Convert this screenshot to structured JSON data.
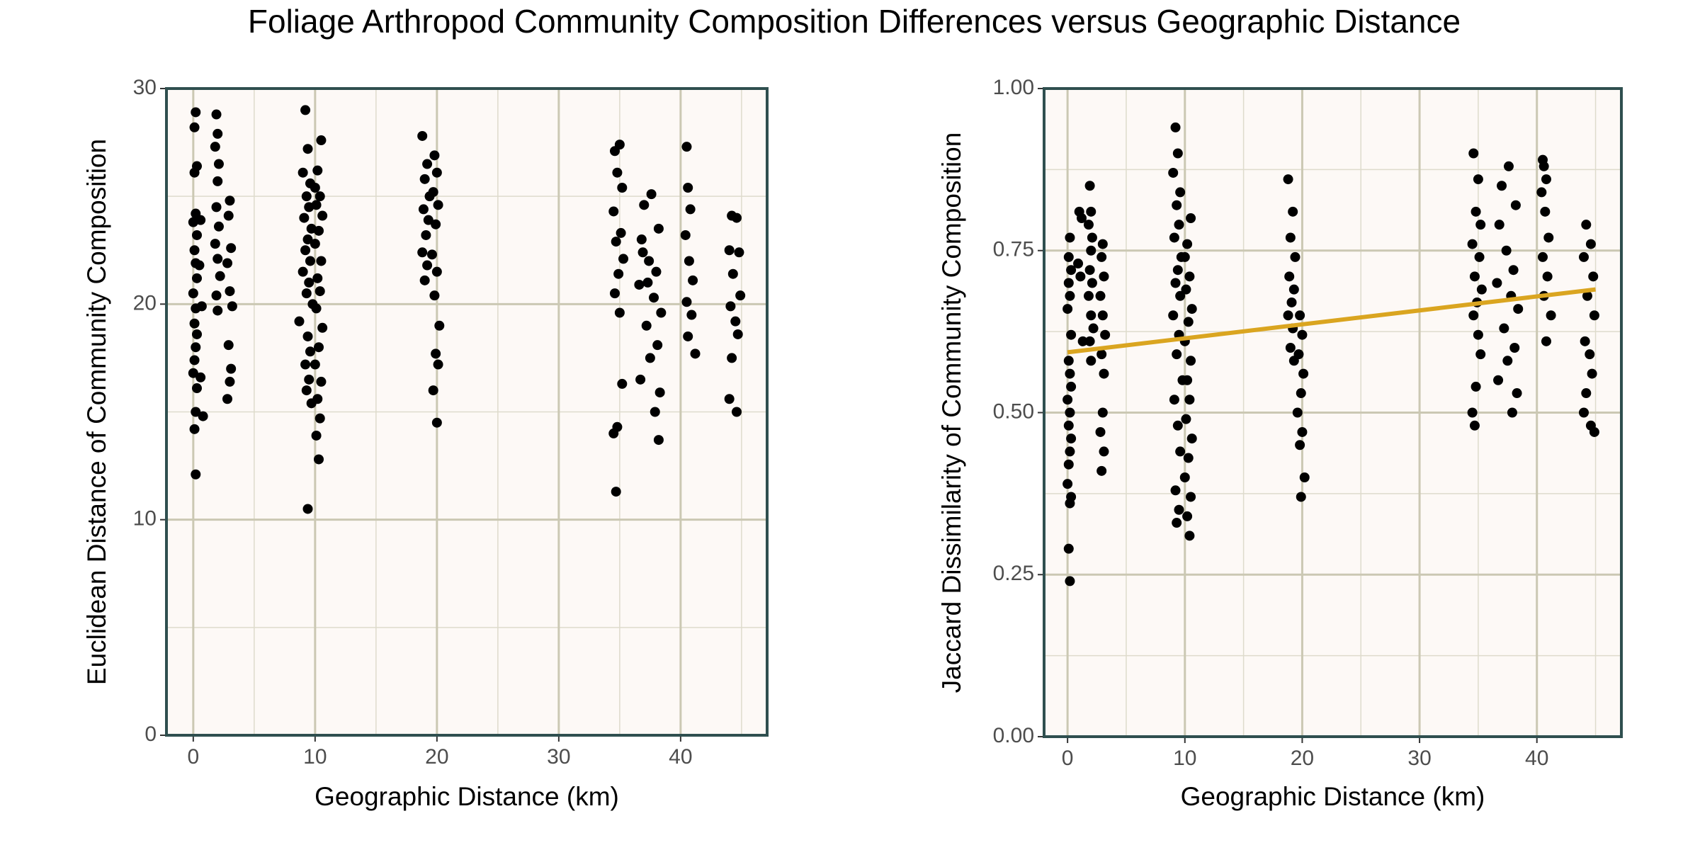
{
  "title": "Foliage Arthropod Community Composition Differences versus Geographic Distance",
  "chart_data": [
    {
      "type": "scatter",
      "xlabel": "Geographic Distance (km)",
      "ylabel": "Euclidean Distance of Community Composition",
      "xlim": [
        -2.2,
        47.1
      ],
      "ylim": [
        0,
        30
      ],
      "xticks": [
        0,
        10,
        20,
        30,
        40
      ],
      "yticks": [
        0,
        10,
        20,
        30
      ],
      "minor_grid_x": [
        5,
        15,
        25,
        35,
        45
      ],
      "minor_grid_y": [
        5,
        15,
        25
      ],
      "color": "#000000",
      "x": [
        0.2,
        0.1,
        0.3,
        0.1,
        0.2,
        0.0,
        0.3,
        0.1,
        0.2,
        0.3,
        0.0,
        0.2,
        0.1,
        0.3,
        0.2,
        0.1,
        0.0,
        0.3,
        0.2,
        0.1,
        0.2,
        0.6,
        0.5,
        0.7,
        0.6,
        0.8,
        1.9,
        2.0,
        1.8,
        2.1,
        2.0,
        1.9,
        2.1,
        1.8,
        2.0,
        2.2,
        1.9,
        2.0,
        3.0,
        2.9,
        3.1,
        2.8,
        3.0,
        3.2,
        2.9,
        3.1,
        3.0,
        2.8,
        9.2,
        9.4,
        9.0,
        9.6,
        9.3,
        9.5,
        9.1,
        9.7,
        9.4,
        9.2,
        9.6,
        9.0,
        9.5,
        9.3,
        9.8,
        8.7,
        9.4,
        9.6,
        9.2,
        9.5,
        9.3,
        9.7,
        9.4,
        10.5,
        10.2,
        10.0,
        10.4,
        10.1,
        10.6,
        10.3,
        10.0,
        10.5,
        10.2,
        10.4,
        10.1,
        10.6,
        10.3,
        10.0,
        10.5,
        10.2,
        10.4,
        10.1,
        10.3,
        18.8,
        19.2,
        19.0,
        19.4,
        18.9,
        19.3,
        19.1,
        18.8,
        19.2,
        19.0,
        19.8,
        20.0,
        19.7,
        20.1,
        19.9,
        19.6,
        20.0,
        19.8,
        20.2,
        19.9,
        20.1,
        19.7,
        20.0,
        34.6,
        35.0,
        34.8,
        35.2,
        34.5,
        35.1,
        34.7,
        35.3,
        34.9,
        34.6,
        35.0,
        35.2,
        34.8,
        34.5,
        34.7,
        37.6,
        37.0,
        38.2,
        36.8,
        37.4,
        38.0,
        36.6,
        37.8,
        38.4,
        37.2,
        38.1,
        37.5,
        36.7,
        38.3,
        37.9,
        38.2,
        36.9,
        37.3,
        40.5,
        40.6,
        40.8,
        40.4,
        40.7,
        41.0,
        40.5,
        40.9,
        40.6,
        41.2,
        44.2,
        44.6,
        44.0,
        44.8,
        44.3,
        44.9,
        44.1,
        44.5,
        44.7,
        44.2,
        44.0,
        44.6
      ],
      "y": [
        28.9,
        28.2,
        26.4,
        26.1,
        24.2,
        23.8,
        23.2,
        22.5,
        21.9,
        21.2,
        20.5,
        19.8,
        19.1,
        18.6,
        18.0,
        17.4,
        16.8,
        16.1,
        15.0,
        14.2,
        12.1,
        23.9,
        21.8,
        19.9,
        16.6,
        14.8,
        28.8,
        27.9,
        27.3,
        26.5,
        25.7,
        24.5,
        23.6,
        22.8,
        22.1,
        21.3,
        20.4,
        19.7,
        24.8,
        24.1,
        22.6,
        21.9,
        20.6,
        19.9,
        18.1,
        17.0,
        16.4,
        15.6,
        29.0,
        27.2,
        26.1,
        25.6,
        25.0,
        24.5,
        24.0,
        23.5,
        23.0,
        22.5,
        22.0,
        21.5,
        21.0,
        20.5,
        20.0,
        19.2,
        18.5,
        17.8,
        17.2,
        16.5,
        16.0,
        15.4,
        10.5,
        27.6,
        26.2,
        25.4,
        25.0,
        24.6,
        24.1,
        23.4,
        22.8,
        22.0,
        21.2,
        20.6,
        19.8,
        18.9,
        18.0,
        17.2,
        16.4,
        15.6,
        14.7,
        13.9,
        12.8,
        27.8,
        26.5,
        25.8,
        25.0,
        24.4,
        23.9,
        23.2,
        22.4,
        21.8,
        21.1,
        26.9,
        26.1,
        25.2,
        24.6,
        23.7,
        22.3,
        21.5,
        20.4,
        19.0,
        17.7,
        17.2,
        16.0,
        14.5,
        27.1,
        27.4,
        26.1,
        25.4,
        24.3,
        23.3,
        22.9,
        22.1,
        21.4,
        20.5,
        19.6,
        16.3,
        14.3,
        14.0,
        11.3,
        25.1,
        24.6,
        23.5,
        23.0,
        22.0,
        21.5,
        20.9,
        20.3,
        19.6,
        19.0,
        18.1,
        17.5,
        16.5,
        15.9,
        15.0,
        13.7,
        22.4,
        21.0,
        27.3,
        25.4,
        24.4,
        23.2,
        22.0,
        21.1,
        20.1,
        19.5,
        18.5,
        17.7,
        24.1,
        24.0,
        22.5,
        22.4,
        21.4,
        20.4,
        19.9,
        19.2,
        18.6,
        17.5,
        15.6,
        15.0
      ]
    },
    {
      "type": "scatter",
      "xlabel": "Geographic Distance (km)",
      "ylabel": "Jaccard Dissimilarity of Community Composition",
      "xlim": [
        -2.0,
        47.2
      ],
      "ylim": [
        0,
        1
      ],
      "xticks": [
        0,
        10,
        20,
        30,
        40
      ],
      "yticks": [
        {
          "value": 0,
          "label": "0.00"
        },
        {
          "value": 0.25,
          "label": "0.25"
        },
        {
          "value": 0.5,
          "label": "0.50"
        },
        {
          "value": 0.75,
          "label": "0.75"
        },
        {
          "value": 1,
          "label": "1.00"
        }
      ],
      "minor_grid_x": [
        5,
        15,
        25,
        35,
        45
      ],
      "minor_grid_y": [
        0.125,
        0.375,
        0.625,
        0.875
      ],
      "color": "#000000",
      "fit_line": {
        "x": [
          0,
          45
        ],
        "y": [
          0.593,
          0.69
        ],
        "color": "#DAA520"
      },
      "x": [
        0.2,
        0.1,
        0.3,
        0.1,
        0.2,
        0.0,
        0.3,
        0.1,
        0.2,
        0.3,
        0.0,
        0.2,
        0.1,
        0.3,
        0.2,
        0.1,
        0.0,
        0.3,
        0.2,
        0.1,
        0.2,
        1.0,
        1.2,
        0.9,
        1.1,
        1.3,
        1.9,
        2.0,
        1.8,
        2.1,
        2.0,
        1.9,
        2.1,
        1.8,
        2.0,
        2.2,
        1.9,
        2.0,
        3.0,
        2.9,
        3.1,
        2.8,
        3.0,
        3.2,
        2.9,
        3.1,
        3.0,
        2.8,
        3.1,
        2.9,
        9.2,
        9.4,
        9.0,
        9.6,
        9.3,
        9.5,
        9.1,
        9.7,
        9.4,
        9.2,
        9.6,
        9.0,
        9.5,
        9.3,
        9.8,
        9.1,
        9.4,
        9.6,
        9.2,
        9.5,
        9.3,
        10.5,
        10.2,
        10.0,
        10.4,
        10.1,
        10.6,
        10.3,
        10.0,
        10.5,
        10.2,
        10.4,
        10.1,
        10.6,
        10.3,
        10.0,
        10.5,
        10.2,
        10.4,
        18.8,
        19.2,
        19.0,
        19.4,
        18.9,
        19.3,
        19.1,
        18.8,
        19.2,
        19.0,
        19.3,
        19.8,
        20.0,
        19.7,
        20.1,
        19.9,
        19.6,
        20.0,
        19.8,
        20.2,
        19.9,
        34.6,
        35.0,
        34.8,
        35.2,
        34.5,
        35.1,
        34.7,
        35.3,
        34.9,
        34.6,
        35.0,
        35.2,
        34.8,
        34.5,
        34.7,
        37.6,
        37.0,
        38.2,
        36.8,
        37.4,
        38.0,
        36.6,
        37.8,
        38.4,
        37.2,
        38.1,
        37.5,
        36.7,
        38.3,
        37.9,
        40.5,
        40.6,
        40.8,
        40.4,
        40.7,
        41.0,
        40.5,
        40.9,
        40.6,
        41.2,
        40.8,
        44.2,
        44.6,
        44.0,
        44.8,
        44.3,
        44.9,
        44.1,
        44.5,
        44.7,
        44.2,
        44.0,
        44.6,
        44.9
      ],
      "y": [
        0.77,
        0.74,
        0.72,
        0.7,
        0.68,
        0.66,
        0.62,
        0.58,
        0.56,
        0.54,
        0.52,
        0.5,
        0.48,
        0.46,
        0.44,
        0.42,
        0.39,
        0.37,
        0.36,
        0.29,
        0.24,
        0.81,
        0.8,
        0.73,
        0.71,
        0.61,
        0.85,
        0.81,
        0.79,
        0.77,
        0.75,
        0.72,
        0.7,
        0.68,
        0.65,
        0.63,
        0.61,
        0.58,
        0.76,
        0.74,
        0.71,
        0.68,
        0.65,
        0.62,
        0.59,
        0.56,
        0.5,
        0.47,
        0.44,
        0.41,
        0.94,
        0.9,
        0.87,
        0.84,
        0.82,
        0.79,
        0.77,
        0.74,
        0.72,
        0.7,
        0.68,
        0.65,
        0.62,
        0.59,
        0.55,
        0.52,
        0.48,
        0.44,
        0.38,
        0.35,
        0.33,
        0.8,
        0.76,
        0.74,
        0.71,
        0.69,
        0.66,
        0.64,
        0.61,
        0.58,
        0.55,
        0.52,
        0.49,
        0.46,
        0.43,
        0.4,
        0.37,
        0.34,
        0.31,
        0.86,
        0.81,
        0.77,
        0.74,
        0.71,
        0.69,
        0.67,
        0.65,
        0.63,
        0.6,
        0.58,
        0.65,
        0.62,
        0.59,
        0.56,
        0.53,
        0.5,
        0.47,
        0.45,
        0.4,
        0.37,
        0.9,
        0.86,
        0.81,
        0.79,
        0.76,
        0.74,
        0.71,
        0.69,
        0.67,
        0.65,
        0.62,
        0.59,
        0.54,
        0.5,
        0.48,
        0.88,
        0.85,
        0.82,
        0.79,
        0.75,
        0.72,
        0.7,
        0.68,
        0.66,
        0.63,
        0.6,
        0.58,
        0.55,
        0.53,
        0.5,
        0.89,
        0.88,
        0.86,
        0.84,
        0.81,
        0.77,
        0.74,
        0.71,
        0.68,
        0.65,
        0.61,
        0.79,
        0.76,
        0.74,
        0.71,
        0.68,
        0.65,
        0.61,
        0.59,
        0.56,
        0.53,
        0.5,
        0.48,
        0.47
      ]
    }
  ]
}
